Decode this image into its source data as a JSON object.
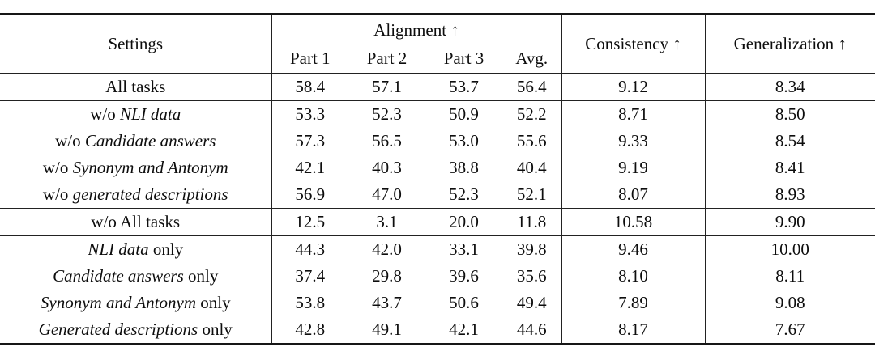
{
  "table": {
    "headers": {
      "settings": "Settings",
      "alignment": "Alignment ↑",
      "part1": "Part 1",
      "part2": "Part 2",
      "part3": "Part 3",
      "avg": "Avg.",
      "consistency": "Consistency ↑",
      "generalization": "Generalization ↑"
    },
    "rows": [
      {
        "prefix": "All tasks",
        "em": "",
        "suffix": "",
        "part1": "58.4",
        "part2": "57.1",
        "part3": "53.7",
        "avg": "56.4",
        "consistency": "9.12",
        "generalization": "8.34"
      },
      {
        "prefix": "w/o ",
        "em": "NLI data",
        "suffix": "",
        "part1": "53.3",
        "part2": "52.3",
        "part3": "50.9",
        "avg": "52.2",
        "consistency": "8.71",
        "generalization": "8.50"
      },
      {
        "prefix": "w/o ",
        "em": "Candidate answers",
        "suffix": "",
        "part1": "57.3",
        "part2": "56.5",
        "part3": "53.0",
        "avg": "55.6",
        "consistency": "9.33",
        "generalization": "8.54"
      },
      {
        "prefix": "w/o ",
        "em": "Synonym and Antonym",
        "suffix": "",
        "part1": "42.1",
        "part2": "40.3",
        "part3": "38.8",
        "avg": "40.4",
        "consistency": "9.19",
        "generalization": "8.41"
      },
      {
        "prefix": "w/o ",
        "em": "generated descriptions",
        "suffix": "",
        "part1": "56.9",
        "part2": "47.0",
        "part3": "52.3",
        "avg": "52.1",
        "consistency": "8.07",
        "generalization": "8.93"
      },
      {
        "prefix": "w/o All tasks",
        "em": "",
        "suffix": "",
        "part1": "12.5",
        "part2": "3.1",
        "part3": "20.0",
        "avg": "11.8",
        "consistency": "10.58",
        "generalization": "9.90"
      },
      {
        "prefix": "",
        "em": "NLI data",
        "suffix": " only",
        "part1": "44.3",
        "part2": "42.0",
        "part3": "33.1",
        "avg": "39.8",
        "consistency": "9.46",
        "generalization": "10.00"
      },
      {
        "prefix": "",
        "em": "Candidate answers",
        "suffix": " only",
        "part1": "37.4",
        "part2": "29.8",
        "part3": "39.6",
        "avg": "35.6",
        "consistency": "8.10",
        "generalization": "8.11"
      },
      {
        "prefix": "",
        "em": "Synonym and Antonym",
        "suffix": " only",
        "part1": "53.8",
        "part2": "43.7",
        "part3": "50.6",
        "avg": "49.4",
        "consistency": "7.89",
        "generalization": "9.08"
      },
      {
        "prefix": "",
        "em": "Generated descriptions",
        "suffix": " only",
        "part1": "42.8",
        "part2": "49.1",
        "part3": "42.1",
        "avg": "44.6",
        "consistency": "8.17",
        "generalization": "7.67"
      }
    ]
  }
}
